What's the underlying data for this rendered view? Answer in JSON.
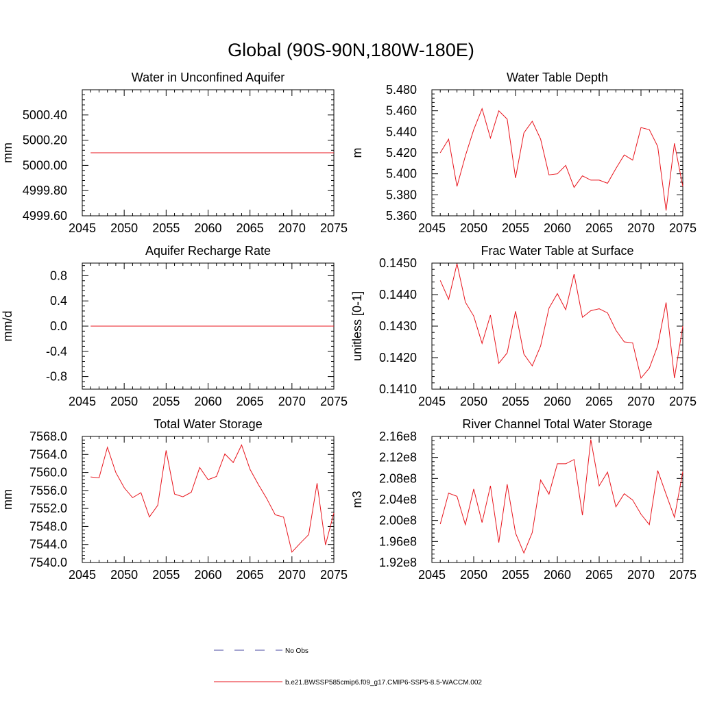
{
  "title": "Global (90S-90N,180W-180E)",
  "legend": {
    "no_obs_label": "No Obs",
    "model_label": "b.e21.BWSSP585cmip6.f09_g17.CMIP6-SSP5-8.5-WACCM.002",
    "no_obs_color": "#4a4aa0",
    "model_color": "#e8141c"
  },
  "chart_data": [
    {
      "type": "line",
      "title": "Water in Unconfined Aquifer",
      "ylabel": "mm",
      "xlim": [
        2045,
        2075
      ],
      "ylim": [
        4999.6,
        5000.6
      ],
      "xticks": [
        2045,
        2050,
        2055,
        2060,
        2065,
        2070,
        2075
      ],
      "yticks": [
        4999.6,
        4999.8,
        5000.0,
        5000.2,
        5000.4
      ],
      "ytick_labels": [
        "4999.60",
        "4999.80",
        "5000.00",
        "5000.20",
        "5000.40"
      ],
      "series": [
        {
          "x": [
            2046,
            2047,
            2048,
            2049,
            2050,
            2051,
            2052,
            2053,
            2054,
            2055,
            2056,
            2057,
            2058,
            2059,
            2060,
            2061,
            2062,
            2063,
            2064,
            2065,
            2066,
            2067,
            2068,
            2069,
            2070,
            2071,
            2072,
            2073,
            2074,
            2075
          ],
          "values": [
            5000.1,
            5000.1,
            5000.1,
            5000.1,
            5000.1,
            5000.1,
            5000.1,
            5000.1,
            5000.1,
            5000.1,
            5000.1,
            5000.1,
            5000.1,
            5000.1,
            5000.1,
            5000.1,
            5000.1,
            5000.1,
            5000.1,
            5000.1,
            5000.1,
            5000.1,
            5000.1,
            5000.1,
            5000.1,
            5000.1,
            5000.1,
            5000.1,
            5000.1,
            5000.1
          ]
        }
      ]
    },
    {
      "type": "line",
      "title": "Water Table Depth",
      "ylabel": "m",
      "xlim": [
        2045,
        2075
      ],
      "ylim": [
        5.36,
        5.48
      ],
      "xticks": [
        2045,
        2050,
        2055,
        2060,
        2065,
        2070,
        2075
      ],
      "yticks": [
        5.36,
        5.38,
        5.4,
        5.42,
        5.44,
        5.46,
        5.48
      ],
      "ytick_labels": [
        "5.360",
        "5.380",
        "5.400",
        "5.420",
        "5.440",
        "5.460",
        "5.480"
      ],
      "series": [
        {
          "x": [
            2046,
            2047,
            2048,
            2049,
            2050,
            2051,
            2052,
            2053,
            2054,
            2055,
            2056,
            2057,
            2058,
            2059,
            2060,
            2061,
            2062,
            2063,
            2064,
            2065,
            2066,
            2067,
            2068,
            2069,
            2070,
            2071,
            2072,
            2073,
            2074,
            2075
          ],
          "values": [
            5.42,
            5.433,
            5.388,
            5.417,
            5.442,
            5.462,
            5.434,
            5.46,
            5.452,
            5.396,
            5.439,
            5.45,
            5.433,
            5.399,
            5.4,
            5.408,
            5.387,
            5.398,
            5.394,
            5.394,
            5.391,
            5.405,
            5.418,
            5.413,
            5.444,
            5.442,
            5.426,
            5.365,
            5.429,
            5.388
          ]
        }
      ]
    },
    {
      "type": "line",
      "title": "Aquifer Recharge Rate",
      "ylabel": "mm/d",
      "xlim": [
        2045,
        2075
      ],
      "ylim": [
        -1.0,
        1.0
      ],
      "xticks": [
        2045,
        2050,
        2055,
        2060,
        2065,
        2070,
        2075
      ],
      "yticks": [
        -0.8,
        -0.4,
        0.0,
        0.4,
        0.8
      ],
      "ytick_labels": [
        "-0.8",
        "-0.4",
        "0.0",
        "0.4",
        "0.8"
      ],
      "series": [
        {
          "x": [
            2046,
            2047,
            2048,
            2049,
            2050,
            2051,
            2052,
            2053,
            2054,
            2055,
            2056,
            2057,
            2058,
            2059,
            2060,
            2061,
            2062,
            2063,
            2064,
            2065,
            2066,
            2067,
            2068,
            2069,
            2070,
            2071,
            2072,
            2073,
            2074,
            2075
          ],
          "values": [
            0,
            0,
            0,
            0,
            0,
            0,
            0,
            0,
            0,
            0,
            0,
            0,
            0,
            0,
            0,
            0,
            0,
            0,
            0,
            0,
            0,
            0,
            0,
            0,
            0,
            0,
            0,
            0,
            0,
            0
          ]
        }
      ]
    },
    {
      "type": "line",
      "title": "Frac Water Table at Surface",
      "ylabel": "unitless [0-1]",
      "xlim": [
        2045,
        2075
      ],
      "ylim": [
        0.141,
        0.145
      ],
      "xticks": [
        2045,
        2050,
        2055,
        2060,
        2065,
        2070,
        2075
      ],
      "yticks": [
        0.141,
        0.142,
        0.143,
        0.144,
        0.145
      ],
      "ytick_labels": [
        "0.1410",
        "0.1420",
        "0.1430",
        "0.1440",
        "0.1450"
      ],
      "series": [
        {
          "x": [
            2046,
            2047,
            2048,
            2049,
            2050,
            2051,
            2052,
            2053,
            2054,
            2055,
            2056,
            2057,
            2058,
            2059,
            2060,
            2061,
            2062,
            2063,
            2064,
            2065,
            2066,
            2067,
            2068,
            2069,
            2070,
            2071,
            2072,
            2073,
            2074,
            2075
          ],
          "values": [
            0.14445,
            0.14385,
            0.14498,
            0.14376,
            0.14332,
            0.14245,
            0.14335,
            0.14182,
            0.14215,
            0.14347,
            0.14211,
            0.14174,
            0.14237,
            0.14357,
            0.14403,
            0.14352,
            0.14465,
            0.14328,
            0.14349,
            0.14355,
            0.14342,
            0.14287,
            0.1425,
            0.14247,
            0.14135,
            0.14167,
            0.14238,
            0.14375,
            0.14135,
            0.143
          ]
        }
      ]
    },
    {
      "type": "line",
      "title": "Total Water Storage",
      "ylabel": "mm",
      "xlim": [
        2045,
        2075
      ],
      "ylim": [
        7540.0,
        7568.0
      ],
      "xticks": [
        2045,
        2050,
        2055,
        2060,
        2065,
        2070,
        2075
      ],
      "yticks": [
        7540,
        7544,
        7548,
        7552,
        7556,
        7560,
        7564,
        7568
      ],
      "ytick_labels": [
        "7540.0",
        "7544.0",
        "7548.0",
        "7552.0",
        "7556.0",
        "7560.0",
        "7564.0",
        "7568.0"
      ],
      "series": [
        {
          "x": [
            2046,
            2047,
            2048,
            2049,
            2050,
            2051,
            2052,
            2053,
            2054,
            2055,
            2056,
            2057,
            2058,
            2059,
            2060,
            2061,
            2062,
            2063,
            2064,
            2065,
            2066,
            2067,
            2068,
            2069,
            2070,
            2071,
            2072,
            2073,
            2074,
            2075
          ],
          "values": [
            7559.0,
            7558.8,
            7565.6,
            7560.0,
            7556.6,
            7554.4,
            7555.5,
            7550.1,
            7552.7,
            7564.9,
            7555.2,
            7554.6,
            7555.6,
            7561.1,
            7558.4,
            7559.1,
            7564.1,
            7562.2,
            7566.1,
            7560.7,
            7557.3,
            7554.2,
            7550.6,
            7550.1,
            7542.3,
            7544.3,
            7546.2,
            7557.6,
            7543.9,
            7551.0
          ]
        }
      ]
    },
    {
      "type": "line",
      "title": "River Channel Total Water Storage",
      "ylabel": "m3",
      "xlim": [
        2045,
        2075
      ],
      "ylim": [
        192000000.0,
        216000000.0
      ],
      "xticks": [
        2045,
        2050,
        2055,
        2060,
        2065,
        2070,
        2075
      ],
      "yticks": [
        192000000.0,
        196000000.0,
        200000000.0,
        204000000.0,
        208000000.0,
        212000000.0,
        216000000.0
      ],
      "ytick_labels": [
        "1.92e8",
        "1.96e8",
        "2.00e8",
        "2.04e8",
        "2.08e8",
        "2.12e8",
        "2.16e8"
      ],
      "series": [
        {
          "x": [
            2046,
            2047,
            2048,
            2049,
            2050,
            2051,
            2052,
            2053,
            2054,
            2055,
            2056,
            2057,
            2058,
            2059,
            2060,
            2061,
            2062,
            2063,
            2064,
            2065,
            2066,
            2067,
            2068,
            2069,
            2070,
            2071,
            2072,
            2073,
            2074,
            2075
          ],
          "values": [
            199300000.0,
            205200000.0,
            204600000.0,
            199200000.0,
            206000000.0,
            199600000.0,
            206600000.0,
            195800000.0,
            206900000.0,
            197600000.0,
            193800000.0,
            197700000.0,
            207700000.0,
            205000000.0,
            210800000.0,
            210800000.0,
            211600000.0,
            201000000.0,
            215400000.0,
            206600000.0,
            209200000.0,
            202600000.0,
            205100000.0,
            203900000.0,
            201200000.0,
            199200000.0,
            209500000.0,
            205000000.0,
            200600000.0,
            209300000.0
          ]
        }
      ]
    }
  ]
}
